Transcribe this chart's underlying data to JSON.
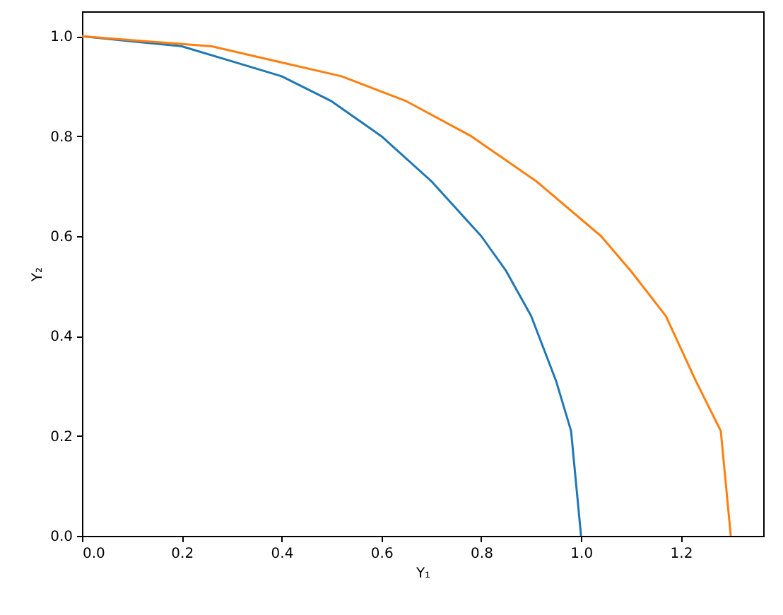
{
  "chart_data": {
    "type": "line",
    "xlabel": "Y₁",
    "ylabel": "Y₂",
    "series": [
      {
        "color": "#1f77b4",
        "x": [
          0,
          0.1,
          0.2,
          0.3,
          0.4,
          0.5,
          0.6,
          0.7,
          0.8,
          0.85,
          0.9,
          0.95,
          0.98,
          1.0
        ],
        "values": [
          1.0,
          0.99,
          0.98,
          0.95,
          0.92,
          0.87,
          0.8,
          0.71,
          0.6,
          0.53,
          0.44,
          0.31,
          0.21,
          0
        ]
      },
      {
        "color": "#ff7f0e",
        "x": [
          0,
          0.13,
          0.26,
          0.39,
          0.52,
          0.65,
          0.78,
          0.91,
          1.04,
          1.1,
          1.17,
          1.23,
          1.28,
          1.3
        ],
        "values": [
          1.0,
          0.99,
          0.98,
          0.95,
          0.92,
          0.87,
          0.8,
          0.71,
          0.6,
          0.53,
          0.44,
          0.31,
          0.21,
          0
        ]
      }
    ],
    "xlim": [
      0,
      1.365
    ],
    "ylim": [
      0,
      1.05
    ],
    "xticks": [
      {
        "value": 0,
        "label": "0.0"
      },
      {
        "value": 0.2,
        "label": "0.2"
      },
      {
        "value": 0.4,
        "label": "0.4"
      },
      {
        "value": 0.6,
        "label": "0.6"
      },
      {
        "value": 0.8,
        "label": "0.8"
      },
      {
        "value": 1.0,
        "label": "1.0"
      },
      {
        "value": 1.2,
        "label": "1.2"
      }
    ],
    "yticks": [
      {
        "value": 0,
        "label": "0.0"
      },
      {
        "value": 0.2,
        "label": "0.2"
      },
      {
        "value": 0.4,
        "label": "0.4"
      },
      {
        "value": 0.6,
        "label": "0.6"
      },
      {
        "value": 0.8,
        "label": "0.8"
      },
      {
        "value": 1.0,
        "label": "1.0"
      }
    ],
    "grid": false
  }
}
